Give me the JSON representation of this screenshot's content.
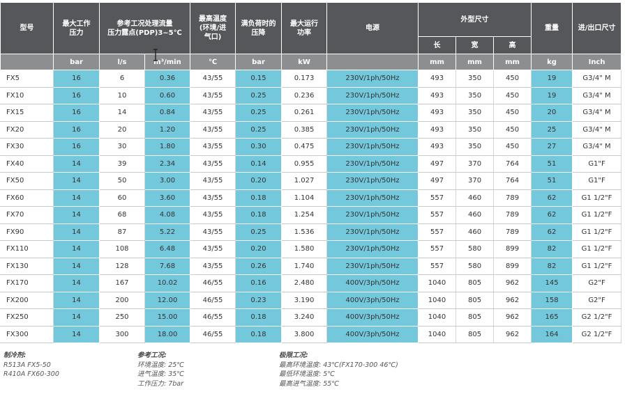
{
  "headers": {
    "model": "型号",
    "max_pressure": [
      "最大工作",
      "压力"
    ],
    "flow": [
      "参考工况处理流量",
      "压力露点(PDP)3~5℃"
    ],
    "max_temp": [
      "最高温度",
      "(环境/进",
      "气口)"
    ],
    "full_load_drop": [
      "满负荷时的",
      "压降"
    ],
    "max_power": [
      "最大运行",
      "功率"
    ],
    "power_supply": "电源",
    "dimensions": "外型尺寸",
    "dim_length": "长",
    "dim_width": "宽",
    "dim_height": "高",
    "weight": "重量",
    "ports": "进/出口尺寸"
  },
  "units": {
    "pressure": "bar",
    "flow_ls": "l/s",
    "flow_m3": "m³/min",
    "temp": "℃",
    "drop": "bar",
    "power": "kW",
    "length": "mm",
    "width": "mm",
    "height": "mm",
    "weight": "kg",
    "ports": "Inch"
  },
  "rows": [
    [
      "FX5",
      "16",
      "6",
      "0.36",
      "43/55",
      "0.15",
      "0.173",
      "230V/1ph/50Hz",
      "493",
      "350",
      "450",
      "19",
      "G3/4\" M"
    ],
    [
      "FX10",
      "16",
      "10",
      "0.60",
      "43/55",
      "0.25",
      "0.236",
      "230V/1ph/50Hz",
      "493",
      "350",
      "450",
      "19",
      "G3/4\" M"
    ],
    [
      "FX15",
      "16",
      "14",
      "0.84",
      "43/55",
      "0.25",
      "0.261",
      "230V/1ph/50Hz",
      "493",
      "350",
      "450",
      "20",
      "G3/4\" M"
    ],
    [
      "FX20",
      "16",
      "20",
      "1.20",
      "43/55",
      "0.25",
      "0.385",
      "230V/1ph/50Hz",
      "493",
      "350",
      "450",
      "25",
      "G3/4\" M"
    ],
    [
      "FX30",
      "16",
      "30",
      "1.80",
      "43/55",
      "0.30",
      "0.475",
      "230V/1ph/50Hz",
      "493",
      "350",
      "450",
      "27",
      "G3/4\" M"
    ],
    [
      "FX40",
      "14",
      "39",
      "2.34",
      "43/55",
      "0.14",
      "0.955",
      "230V/1ph/50Hz",
      "497",
      "370",
      "764",
      "51",
      "G1\"F"
    ],
    [
      "FX50",
      "14",
      "50",
      "3.00",
      "43/55",
      "0.20",
      "1.027",
      "230V/1ph/50Hz",
      "497",
      "370",
      "764",
      "51",
      "G1\"F"
    ],
    [
      "FX60",
      "14",
      "60",
      "3.60",
      "43/55",
      "0.18",
      "1.104",
      "230V/1ph/50Hz",
      "557",
      "460",
      "789",
      "62",
      "G1 1/2\"F"
    ],
    [
      "FX70",
      "14",
      "68",
      "4.08",
      "43/55",
      "0.18",
      "1.254",
      "230V/1ph/50Hz",
      "557",
      "460",
      "789",
      "62",
      "G1 1/2\"F"
    ],
    [
      "FX90",
      "14",
      "87",
      "5.22",
      "43/55",
      "0.25",
      "1.536",
      "230V/1ph/50Hz",
      "557",
      "460",
      "789",
      "62",
      "G1 1/2\"F"
    ],
    [
      "FX110",
      "14",
      "108",
      "6.48",
      "43/55",
      "0.20",
      "1.580",
      "230V/1ph/50Hz",
      "557",
      "580",
      "899",
      "82",
      "G1 1/2\"F"
    ],
    [
      "FX130",
      "14",
      "128",
      "7.68",
      "43/55",
      "0.26",
      "1.740",
      "230V/1ph/50Hz",
      "557",
      "580",
      "899",
      "82",
      "G1 1/2\"F"
    ],
    [
      "FX170",
      "14",
      "167",
      "10.02",
      "46/55",
      "0.16",
      "2.480",
      "400V/3ph/50Hz",
      "1040",
      "805",
      "962",
      "145",
      "G2\"F"
    ],
    [
      "FX200",
      "14",
      "200",
      "12.00",
      "46/55",
      "0.23",
      "3.190",
      "400V/3ph/50Hz",
      "1040",
      "805",
      "962",
      "158",
      "G2\"F"
    ],
    [
      "FX250",
      "14",
      "250",
      "15.00",
      "46/55",
      "0.18",
      "3.240",
      "400V/3ph/50Hz",
      "1040",
      "805",
      "962",
      "165",
      "G2 1/2\"F"
    ],
    [
      "FX300",
      "14",
      "300",
      "18.00",
      "46/55",
      "0.18",
      "3.800",
      "400V/3ph/50Hz",
      "1040",
      "805",
      "962",
      "164",
      "G2 1/2\"F"
    ]
  ],
  "notes": {
    "refrigerant": {
      "title": "制冷剂:",
      "lines": [
        "R513A FX5-50",
        "R410A FX60-300"
      ]
    },
    "reference": {
      "title": "参考工况:",
      "lines": [
        "环境温度: 25℃",
        "进气温度: 35℃",
        "工作压力: 7bar"
      ]
    },
    "limit": {
      "title": "极限工况:",
      "lines": [
        "最高环境温度: 43℃(FX170-300 46℃)",
        "最低环境温度: 5℃",
        "最高进气温度: 55℃"
      ]
    }
  },
  "colors": {
    "header_dark": "#55575a",
    "header_unit": "#8c8e90",
    "highlight": "#73c8dc"
  }
}
